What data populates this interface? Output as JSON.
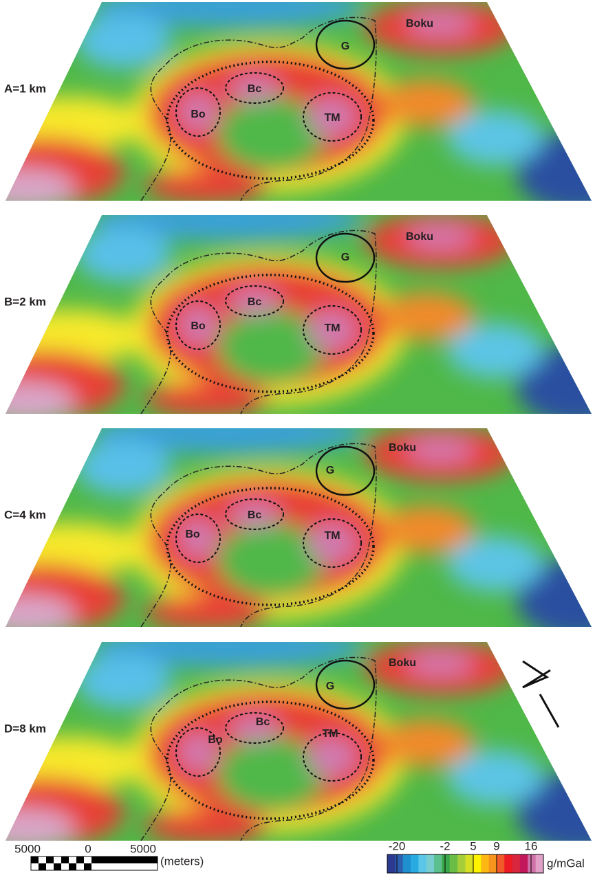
{
  "panels": [
    {
      "label": "A=1 km",
      "regions": [
        "Boku",
        "G",
        "Bc",
        "Bo",
        "TM"
      ]
    },
    {
      "label": "B=2 km",
      "regions": [
        "Boku",
        "G",
        "Bc",
        "Bo",
        "TM"
      ]
    },
    {
      "label": "C=4 km",
      "regions": [
        "Boku",
        "G",
        "Bc",
        "Bo",
        "TM"
      ]
    },
    {
      "label": "D=8 km",
      "regions": [
        "Boku",
        "G",
        "Bc",
        "Bo",
        "TM"
      ]
    }
  ],
  "scale_bar": {
    "ticks": [
      "5000",
      "0",
      "5000"
    ],
    "unit": "(meters)"
  },
  "colorbar": {
    "ticks": [
      -20,
      -2,
      5,
      9,
      16
    ],
    "unit": "g/mGal"
  }
}
